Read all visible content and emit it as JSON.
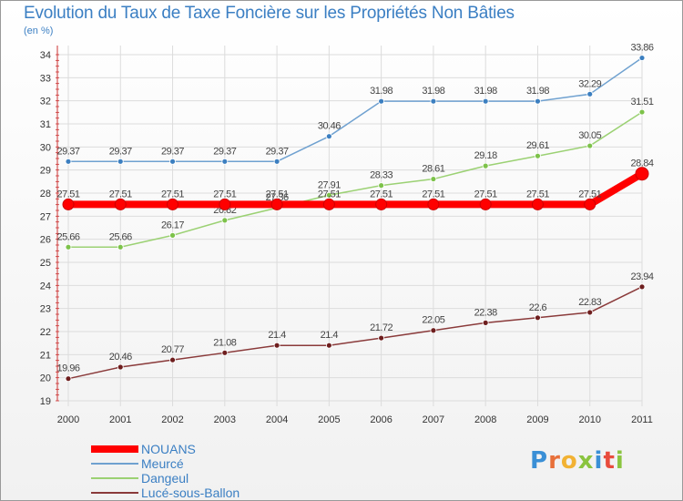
{
  "header": {
    "title": "Evolution du Taux de Taxe Foncière sur les Propriétés Non Bâties",
    "unit": "(en %)"
  },
  "brand": {
    "letters": [
      "P",
      "r",
      "o",
      "x",
      "i",
      "t",
      "i"
    ],
    "colors": [
      "#3a8fd6",
      "#e8703a",
      "#f2b233",
      "#8ac43f",
      "#3a8fd6",
      "#e84c3d",
      "#8ac43f"
    ]
  },
  "chart_data": {
    "type": "line",
    "title": "Evolution du Taux de Taxe Foncière sur les Propriétés Non Bâties",
    "ylabel": "(en %)",
    "x": [
      "2000",
      "2001",
      "2002",
      "2003",
      "2004",
      "2005",
      "2006",
      "2007",
      "2008",
      "2009",
      "2010",
      "2011"
    ],
    "ylim": [
      19,
      34
    ],
    "yticks": [
      19,
      20,
      21,
      22,
      23,
      24,
      25,
      26,
      27,
      28,
      29,
      30,
      31,
      32,
      33,
      34
    ],
    "grid": true,
    "legend_position": "bottom-left",
    "series": [
      {
        "name": "NOUANS",
        "color": "#ff0000",
        "thick": true,
        "values": [
          27.51,
          27.51,
          27.51,
          27.51,
          27.51,
          27.51,
          27.51,
          27.51,
          27.51,
          27.51,
          27.51,
          28.84
        ],
        "labels": [
          "27.51",
          "27.51",
          "27.51",
          "27.51",
          "27.51",
          "27.51",
          "27.51",
          "27.51",
          "27.51",
          "27.51",
          "27.51",
          "28.84"
        ]
      },
      {
        "name": "Meurcé",
        "color": "#6fa1d0",
        "marker": "#3c7fc0",
        "thick": false,
        "values": [
          29.37,
          29.37,
          29.37,
          29.37,
          29.37,
          30.46,
          31.98,
          31.98,
          31.98,
          31.98,
          32.29,
          33.86
        ],
        "labels": [
          "29.37",
          "29.37",
          "29.37",
          "29.37",
          "29.37",
          "30.46",
          "31.98",
          "31.98",
          "31.98",
          "31.98",
          "32.29",
          "33.86"
        ]
      },
      {
        "name": "Dangeul",
        "color": "#9bd173",
        "marker": "#7dc24a",
        "thick": false,
        "values": [
          25.66,
          25.66,
          26.17,
          26.82,
          27.36,
          27.91,
          28.33,
          28.61,
          29.18,
          29.61,
          30.05,
          31.51
        ],
        "labels": [
          "25.66",
          "25.66",
          "26.17",
          "26.82",
          "27.36",
          "27.91",
          "28.33",
          "28.61",
          "29.18",
          "29.61",
          "30.05",
          "31.51"
        ]
      },
      {
        "name": "Lucé-sous-Ballon",
        "color": "#8a3a3a",
        "marker": "#6e1e1e",
        "thick": false,
        "values": [
          19.96,
          20.46,
          20.77,
          21.08,
          21.4,
          21.4,
          21.72,
          22.05,
          22.38,
          22.6,
          22.83,
          23.94
        ],
        "labels": [
          "19.96",
          "20.46",
          "20.77",
          "21.08",
          "21.4",
          "21.4",
          "21.72",
          "22.05",
          "22.38",
          "22.6",
          "22.83",
          "23.94"
        ]
      }
    ]
  }
}
